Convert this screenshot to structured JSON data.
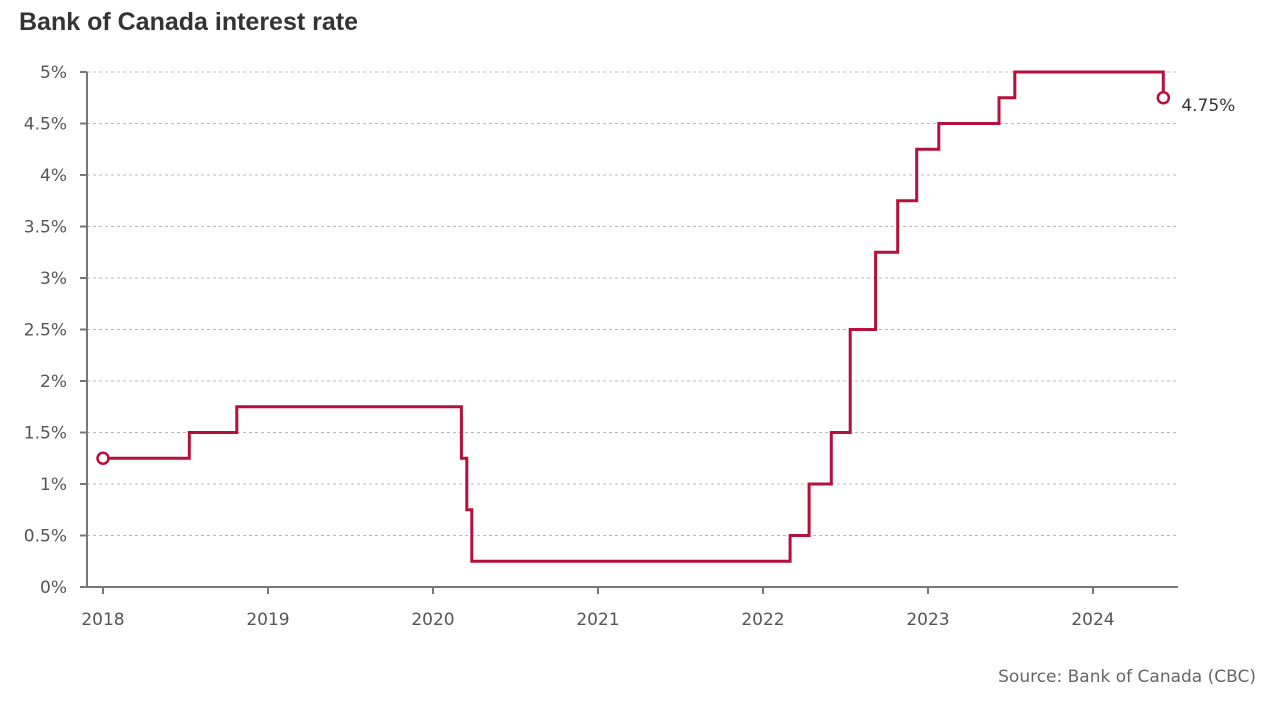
{
  "title": "Bank of Canada interest rate",
  "source": "Source: Bank of Canada (CBC)",
  "colors": {
    "line": "#b5103c",
    "grid": "#b9b9b9",
    "axis": "#777777",
    "text": "#555555"
  },
  "chart_data": {
    "type": "line",
    "step": true,
    "title": "Bank of Canada interest rate",
    "xlabel": "",
    "ylabel": "",
    "xlim": [
      "2018-01-01",
      "2024-06-15"
    ],
    "ylim": [
      0,
      5
    ],
    "grid": true,
    "y_ticks": [
      {
        "value": 0,
        "label": "0%"
      },
      {
        "value": 0.5,
        "label": "0.5%"
      },
      {
        "value": 1,
        "label": "1%"
      },
      {
        "value": 1.5,
        "label": "1.5%"
      },
      {
        "value": 2,
        "label": "2%"
      },
      {
        "value": 2.5,
        "label": "2.5%"
      },
      {
        "value": 3,
        "label": "3%"
      },
      {
        "value": 3.5,
        "label": "3.5%"
      },
      {
        "value": 4,
        "label": "4%"
      },
      {
        "value": 4.5,
        "label": "4.5%"
      },
      {
        "value": 5,
        "label": "5%"
      }
    ],
    "x_ticks": [
      {
        "value": "2018-01-01",
        "label": "2018"
      },
      {
        "value": "2019-01-01",
        "label": "2019"
      },
      {
        "value": "2020-01-01",
        "label": "2020"
      },
      {
        "value": "2021-01-01",
        "label": "2021"
      },
      {
        "value": "2022-01-01",
        "label": "2022"
      },
      {
        "value": "2023-01-01",
        "label": "2023"
      },
      {
        "value": "2024-01-01",
        "label": "2024"
      }
    ],
    "series": [
      {
        "points": [
          {
            "x": "2018-01-01",
            "y": 1.25
          },
          {
            "x": "2018-07-11",
            "y": 1.5
          },
          {
            "x": "2018-10-24",
            "y": 1.75
          },
          {
            "x": "2020-03-04",
            "y": 1.25
          },
          {
            "x": "2020-03-16",
            "y": 0.75
          },
          {
            "x": "2020-03-27",
            "y": 0.25
          },
          {
            "x": "2022-03-02",
            "y": 0.5
          },
          {
            "x": "2022-04-13",
            "y": 1.0
          },
          {
            "x": "2022-06-01",
            "y": 1.5
          },
          {
            "x": "2022-07-13",
            "y": 2.5
          },
          {
            "x": "2022-09-07",
            "y": 3.25
          },
          {
            "x": "2022-10-26",
            "y": 3.75
          },
          {
            "x": "2022-12-07",
            "y": 4.25
          },
          {
            "x": "2023-01-25",
            "y": 4.5
          },
          {
            "x": "2023-06-07",
            "y": 4.75
          },
          {
            "x": "2023-07-12",
            "y": 5.0
          },
          {
            "x": "2024-06-05",
            "y": 4.75
          }
        ],
        "end_date": "2024-06-05"
      }
    ],
    "annotations": [
      {
        "x": "2024-06-05",
        "y": 4.75,
        "text": "4.75%"
      }
    ]
  }
}
